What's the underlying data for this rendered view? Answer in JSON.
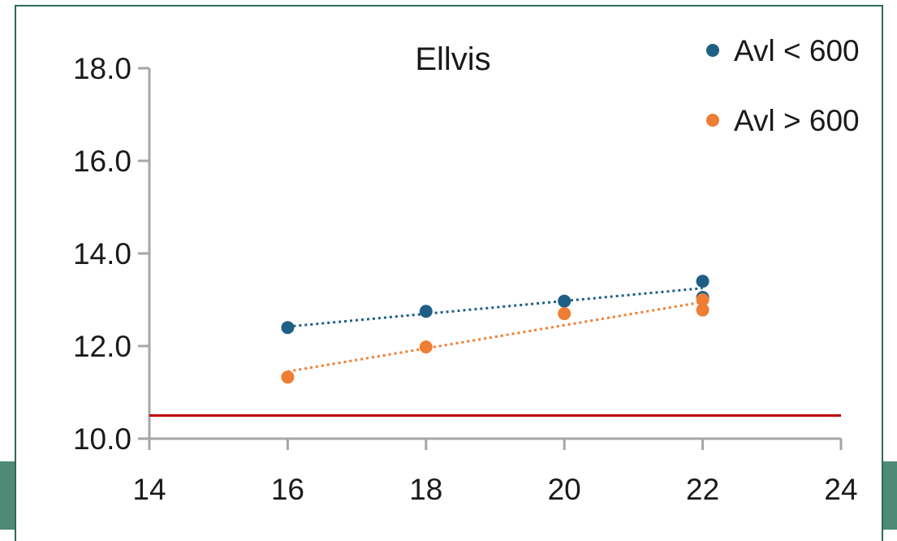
{
  "chart_data": {
    "type": "scatter",
    "title": "Ellvis",
    "xlabel": "",
    "ylabel": "",
    "xlim": [
      14,
      24
    ],
    "ylim": [
      10.0,
      18.0
    ],
    "x_ticks": [
      "14",
      "16",
      "18",
      "20",
      "22",
      "24"
    ],
    "y_ticks": [
      "10.0",
      "12.0",
      "14.0",
      "16.0",
      "18.0"
    ],
    "grid": false,
    "legend_position": "top-right",
    "series": [
      {
        "name": "Avl < 600",
        "color": "#1f5f86",
        "points": [
          [
            16,
            12.4
          ],
          [
            18,
            12.75
          ],
          [
            20,
            12.97
          ],
          [
            22,
            13.4
          ],
          [
            22,
            13.05
          ]
        ],
        "trendline": {
          "style": "dotted",
          "from": [
            16,
            12.42
          ],
          "to": [
            22,
            13.25
          ]
        }
      },
      {
        "name": "Avl > 600",
        "color": "#ef7d33",
        "points": [
          [
            16,
            11.33
          ],
          [
            18,
            11.98
          ],
          [
            20,
            12.7
          ],
          [
            22,
            13.0
          ],
          [
            22,
            12.78
          ]
        ],
        "trendline": {
          "style": "dotted",
          "from": [
            16,
            11.45
          ],
          "to": [
            22,
            12.95
          ]
        }
      }
    ],
    "reference_line": {
      "y": 10.5,
      "color": "#c00000"
    }
  }
}
